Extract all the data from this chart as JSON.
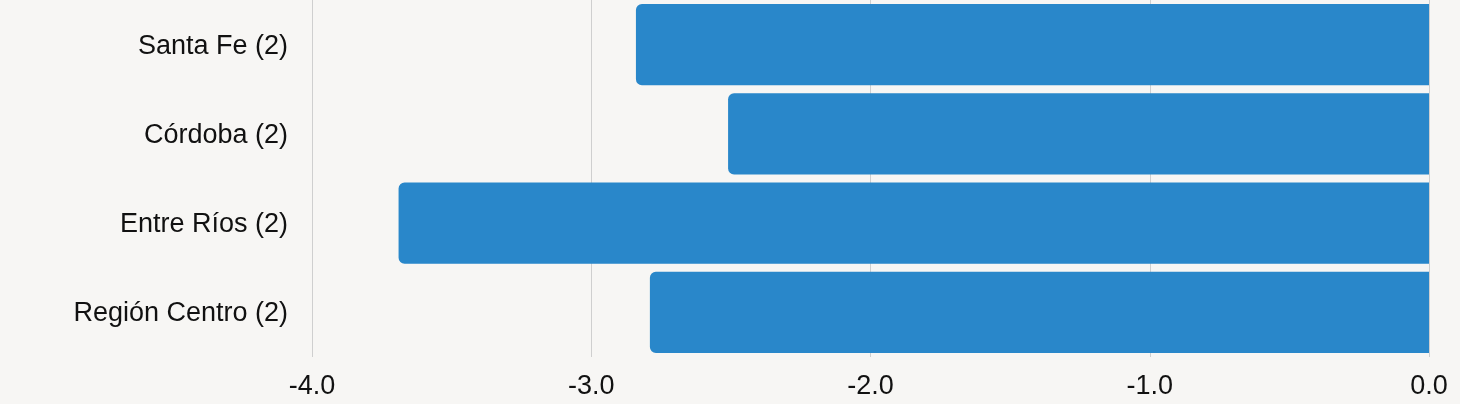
{
  "chart_data": {
    "type": "bar",
    "orientation": "horizontal",
    "categories": [
      "Santa Fe (2)",
      "Córdoba (2)",
      "Entre Ríos (2)",
      "Región Centro (2)"
    ],
    "values": [
      -2.84,
      -2.51,
      -3.69,
      -2.79
    ],
    "color": "#2987ca",
    "xlim": [
      -4,
      0
    ],
    "xticks": [
      {
        "value": -4,
        "label": "-4.0"
      },
      {
        "value": -3,
        "label": "-3.0"
      },
      {
        "value": -2,
        "label": "-2.0"
      },
      {
        "value": -1,
        "label": "-1.0"
      },
      {
        "value": 0,
        "label": "0.0"
      }
    ],
    "grid": "x"
  }
}
